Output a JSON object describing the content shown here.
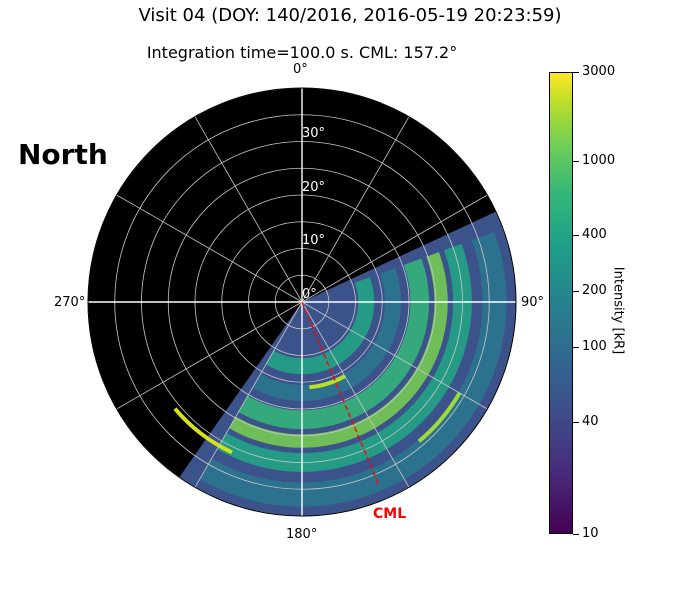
{
  "header": {
    "title": "Visit 04 (DOY: 140/2016, 2016-05-19 20:23:59)",
    "subtitle": "Integration time=100.0 s. CML: 157.2°"
  },
  "hemisphere_label": "North",
  "chart_data": {
    "type": "heatmap",
    "projection": "polar",
    "title": "Visit 04 (DOY: 140/2016, 2016-05-19 20:23:59)",
    "subtitle": "Integration time=100.0 s. CML: 157.2°",
    "angular_ticks": [
      "0°",
      "90°",
      "180°",
      "270°"
    ],
    "angular_tick_values": [
      0,
      90,
      180,
      270
    ],
    "radial_ticks": [
      "0°",
      "10°",
      "20°",
      "30°"
    ],
    "radial_tick_values": [
      0,
      10,
      20,
      30
    ],
    "radial_range": [
      0,
      40
    ],
    "grid": true,
    "cml": {
      "label": "CML",
      "longitude": 157.2,
      "color": "#ff0000"
    },
    "colorbar": {
      "label": "Intensity [kR]",
      "scale": "log",
      "range": [
        10,
        3000
      ],
      "ticks": [
        "10",
        "40",
        "100",
        "200",
        "400",
        "1000",
        "3000"
      ],
      "tick_values": [
        10,
        40,
        100,
        200,
        400,
        1000,
        3000
      ],
      "colormap": "viridis"
    },
    "observed_longitude_range": [
      65,
      215
    ],
    "colors": {
      "background": "#000000",
      "grid": "#c8c8c8",
      "cml": "#ff0000"
    }
  }
}
